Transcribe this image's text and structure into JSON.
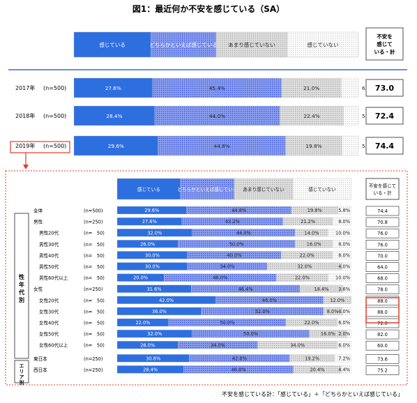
{
  "title": "図1：最近何か不安を感じている（SA）",
  "footnote": "不安を感じている計：「感じている」＋「どちらかといえば感じている」",
  "legend": [
    "感じている",
    "どちらかといえば感じている",
    "あまり感じていない",
    "感じていない"
  ],
  "total_header": "不安を感じている・計",
  "colors": {
    "c1": "#2e6fe0",
    "c2": "#6d86e8",
    "c3": "#d4d4d4",
    "c4": "#f4f4f4",
    "rule": "#2e6fe0",
    "frame": "#e03b2a"
  },
  "chart_data": [
    {
      "type": "bar",
      "subtype": "stacked-horizontal-100",
      "categories": [
        "2017年",
        "2018年",
        "2019年"
      ],
      "n_labels": [
        "(n=500)",
        "(n=500)",
        "(n=500)"
      ],
      "series": [
        {
          "name": "感じている",
          "values": [
            27.6,
            28.4,
            29.6
          ]
        },
        {
          "name": "どちらかといえば感じている",
          "values": [
            45.4,
            44.0,
            44.8
          ]
        },
        {
          "name": "あまり感じていない",
          "values": [
            21.0,
            22.4,
            19.8
          ]
        },
        {
          "name": "感じていない",
          "values": [
            6.0,
            5.2,
            5.8
          ]
        }
      ],
      "totals": [
        "73.0",
        "72.4",
        "74.4"
      ]
    },
    {
      "type": "bar",
      "subtype": "stacked-horizontal-100",
      "group_labels": [
        "性年代別",
        "エリア別"
      ],
      "categories": [
        "全体",
        "男性",
        "男性20代",
        "男性30代",
        "男性40代",
        "男性50代",
        "男性60代以上",
        "女性",
        "女性20代",
        "女性30代",
        "女性40代",
        "女性50代",
        "女性60代以上",
        "東日本",
        "西日本"
      ],
      "n_labels": [
        "(n=500)",
        "(n=250)",
        "(n=　50)",
        "(n=　50)",
        "(n=　50)",
        "(n=　50)",
        "(n=　50)",
        "(n=250)",
        "(n=　50)",
        "(n=　50)",
        "(n=　50)",
        "(n=　50)",
        "(n=　50)",
        "(n=250)",
        "(n=250)"
      ],
      "series": [
        {
          "name": "感じている",
          "values": [
            29.6,
            27.6,
            32.0,
            26.0,
            30.0,
            30.0,
            20.0,
            31.6,
            42.0,
            36.0,
            22.0,
            32.0,
            26.0,
            30.8,
            28.4
          ]
        },
        {
          "name": "どちらかといえば感じている",
          "values": [
            44.8,
            43.2,
            44.0,
            50.0,
            40.0,
            34.0,
            48.0,
            46.4,
            46.0,
            52.0,
            50.0,
            50.0,
            34.0,
            42.8,
            46.8
          ]
        },
        {
          "name": "あまり感じていない",
          "values": [
            19.8,
            21.2,
            14.0,
            16.0,
            22.0,
            32.0,
            22.0,
            18.4,
            12.0,
            8.0,
            22.0,
            16.0,
            34.0,
            19.2,
            20.4
          ]
        },
        {
          "name": "感じていない",
          "values": [
            5.8,
            8.0,
            10.0,
            8.0,
            8.0,
            4.0,
            10.0,
            3.6,
            0.0,
            4.0,
            6.0,
            2.0,
            6.0,
            7.2,
            4.4
          ]
        }
      ],
      "totals": [
        "74.4",
        "70.8",
        "76.0",
        "76.0",
        "70.0",
        "64.0",
        "68.0",
        "78.0",
        "88.0",
        "88.0",
        "72.0",
        "82.0",
        "60.0",
        "73.6",
        "75.2"
      ]
    }
  ]
}
